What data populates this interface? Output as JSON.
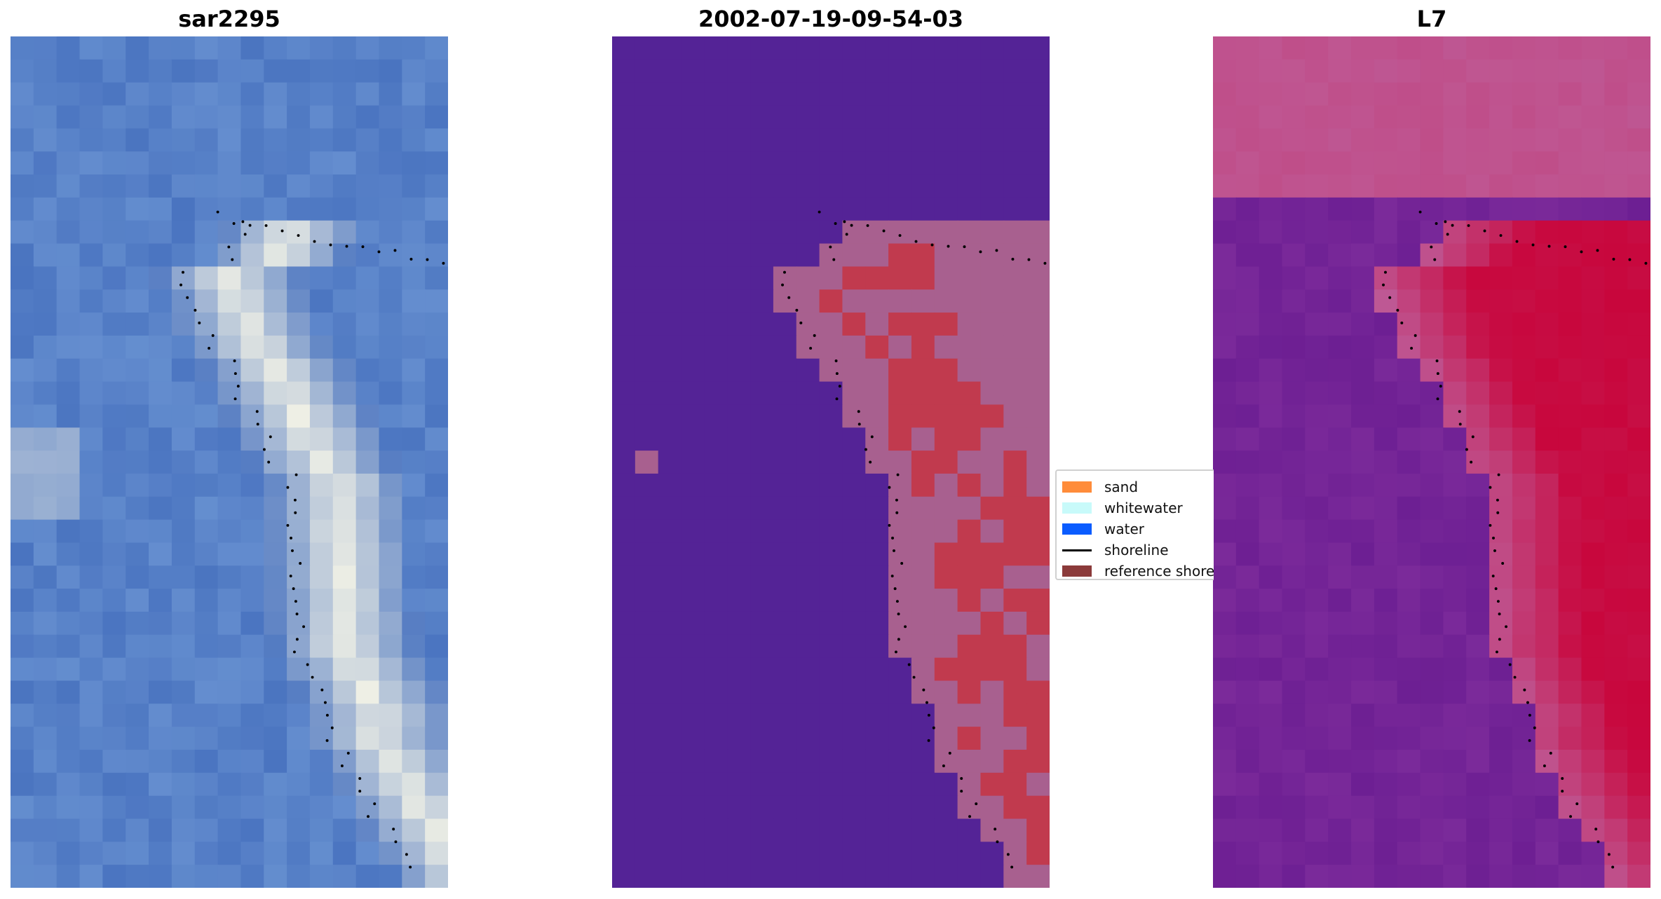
{
  "panels": {
    "left": {
      "title": "sar2295",
      "colormap": "blue-white composite"
    },
    "middle": {
      "title": "2002-07-19-09-54-03",
      "colormap": "classified"
    },
    "right": {
      "title": "L7",
      "colormap": "purple-red index"
    }
  },
  "legend": {
    "items": [
      {
        "label": "sand",
        "color": "#ff8c3a"
      },
      {
        "label": "whitewater",
        "color": "#c8fafa"
      },
      {
        "label": "water",
        "color": "#0a5cff"
      },
      {
        "label": "shoreline",
        "color": "#000000",
        "kind": "line"
      },
      {
        "label": "reference shore",
        "color": "#8b3a3a"
      }
    ]
  },
  "colors": {
    "water_class": "#542396",
    "shore_pink": "#a8608f",
    "sand_red": "#c13a4e",
    "sar_blue": "#4a74c0",
    "sar_white": "#f2f2e6",
    "index_purple": "#7b2a9a",
    "index_red": "#c8063c"
  }
}
